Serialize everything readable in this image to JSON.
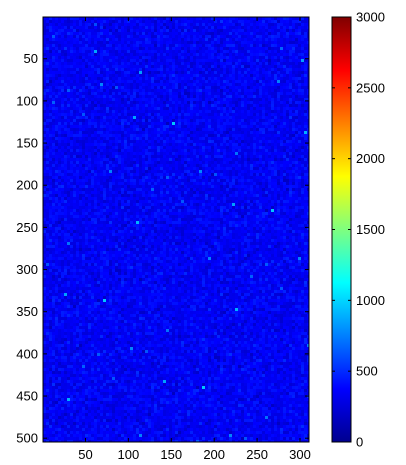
{
  "chart_data": {
    "type": "heatmap",
    "x": {
      "ticks": [
        50,
        100,
        150,
        200,
        250,
        300
      ],
      "range": [
        1,
        310
      ]
    },
    "y": {
      "ticks": [
        50,
        100,
        150,
        200,
        250,
        300,
        350,
        400,
        450,
        500
      ],
      "range": [
        1,
        504
      ],
      "reversed": true
    },
    "colorbar": {
      "ticks": [
        0,
        500,
        1000,
        1500,
        2000,
        2500,
        3000
      ],
      "range": [
        0,
        3000
      ],
      "colormap": "jet"
    },
    "values": {
      "typical": 350,
      "min": 150,
      "max": 1000,
      "distribution": "noise"
    },
    "colors": {
      "background_low": "#1f3d9e",
      "background_mid": "#2a4cb8",
      "speckle": "#58aee6"
    }
  }
}
